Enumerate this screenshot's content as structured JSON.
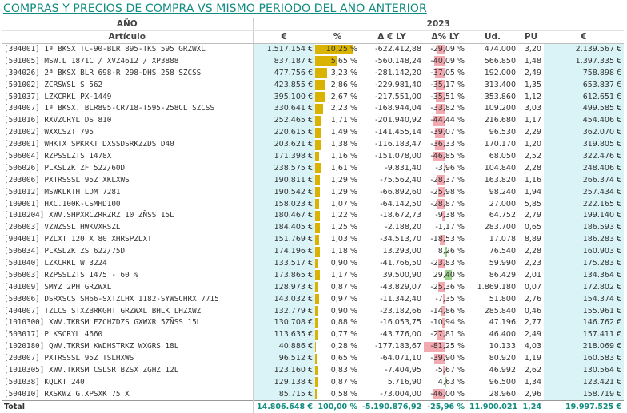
{
  "title": "COMPRAS Y PRECIOS DE COMPRA VS MISMO PERIODO DEL AÑO ANTERIOR",
  "header": {
    "year_label": "AÑO",
    "row_label": "Artículo",
    "year_2023": "2023",
    "columns": [
      "€",
      "%",
      "Δ € LY",
      "Δ% LY",
      "Ud.",
      "PU",
      "€"
    ]
  },
  "colors": {
    "share_bar": "#d9b300",
    "neg_bar": "#f2aab0",
    "pos_bar": "#9bd18b",
    "title": "#118c80",
    "cyan_fill": "#d9f3f7"
  },
  "rows": [
    {
      "articulo": "[304001] 1ª BKSX TC-90-BLR 895-TKS 595 GRZWXL",
      "eur": "1.517.154 €",
      "pct": "10,25 %",
      "pct_val": 10.25,
      "delta_eur": "-622.412,88",
      "delta_pct": "-29,09 %",
      "delta_pct_val": -29.09,
      "ud": "474.000",
      "pu": "3,20",
      "eur_ly": "2.139.567 €"
    },
    {
      "articulo": "[501005] MSW.L 1871C / XVZ4612 / XP3888",
      "eur": "837.187 €",
      "pct": "5,65 %",
      "pct_val": 5.65,
      "delta_eur": "-560.148,24",
      "delta_pct": "-40,09 %",
      "delta_pct_val": -40.09,
      "ud": "566.850",
      "pu": "1,48",
      "eur_ly": "1.397.335 €"
    },
    {
      "articulo": "[304026] 2ª BKSX BLR 698-R 298-DHS 258 SZCSS",
      "eur": "477.756 €",
      "pct": "3,23 %",
      "pct_val": 3.23,
      "delta_eur": "-281.142,20",
      "delta_pct": "-37,05 %",
      "delta_pct_val": -37.05,
      "ud": "192.000",
      "pu": "2,49",
      "eur_ly": "758.898 €"
    },
    {
      "articulo": "[501002] ZCRSWSL S 562",
      "eur": "423.855 €",
      "pct": "2,86 %",
      "pct_val": 2.86,
      "delta_eur": "-229.981,40",
      "delta_pct": "-35,17 %",
      "delta_pct_val": -35.17,
      "ud": "313.400",
      "pu": "1,35",
      "eur_ly": "653.837 €"
    },
    {
      "articulo": "[501037] LZKCRKL PX-1449",
      "eur": "395.100 €",
      "pct": "2,67 %",
      "pct_val": 2.67,
      "delta_eur": "-217.551,00",
      "delta_pct": "-35,51 %",
      "delta_pct_val": -35.51,
      "ud": "353.860",
      "pu": "1,12",
      "eur_ly": "612.651 €"
    },
    {
      "articulo": "[304007] 1ª BKSX. BLR895-CR718-T595-258CL SZCSS",
      "eur": "330.641 €",
      "pct": "2,23 %",
      "pct_val": 2.23,
      "delta_eur": "-168.944,04",
      "delta_pct": "-33,82 %",
      "delta_pct_val": -33.82,
      "ud": "109.200",
      "pu": "3,03",
      "eur_ly": "499.585 €"
    },
    {
      "articulo": "[501016] RXVZCRYL DS 810",
      "eur": "252.465 €",
      "pct": "1,71 %",
      "pct_val": 1.71,
      "delta_eur": "-201.940,92",
      "delta_pct": "-44,44 %",
      "delta_pct_val": -44.44,
      "ud": "216.680",
      "pu": "1,17",
      "eur_ly": "454.406 €"
    },
    {
      "articulo": "[201002] WXXCSZT 795",
      "eur": "220.615 €",
      "pct": "1,49 %",
      "pct_val": 1.49,
      "delta_eur": "-141.455,14",
      "delta_pct": "-39,07 %",
      "delta_pct_val": -39.07,
      "ud": "96.530",
      "pu": "2,29",
      "eur_ly": "362.070 €"
    },
    {
      "articulo": "[203001] WHKTX SPKRKT DXSSDSRKZZDS D40",
      "eur": "203.621 €",
      "pct": "1,38 %",
      "pct_val": 1.38,
      "delta_eur": "-116.183,47",
      "delta_pct": "-36,33 %",
      "delta_pct_val": -36.33,
      "ud": "170.170",
      "pu": "1,20",
      "eur_ly": "319.805 €"
    },
    {
      "articulo": "[506004] RZPSSLZTS 1478X",
      "eur": "171.398 €",
      "pct": "1,16 %",
      "pct_val": 1.16,
      "delta_eur": "-151.078,00",
      "delta_pct": "-46,85 %",
      "delta_pct_val": -46.85,
      "ud": "68.050",
      "pu": "2,52",
      "eur_ly": "322.476 €"
    },
    {
      "articulo": "[506026] PLKSLZK ZF 522/60D",
      "eur": "238.575 €",
      "pct": "1,61 %",
      "pct_val": 1.61,
      "delta_eur": "-9.831,40",
      "delta_pct": "-3,96 %",
      "delta_pct_val": -3.96,
      "ud": "104.840",
      "pu": "2,28",
      "eur_ly": "248.406 €"
    },
    {
      "articulo": "[203006] PXTRSSSL 95Z XKLXWS",
      "eur": "190.811 €",
      "pct": "1,29 %",
      "pct_val": 1.29,
      "delta_eur": "-75.562,40",
      "delta_pct": "-28,37 %",
      "delta_pct_val": -28.37,
      "ud": "163.820",
      "pu": "1,16",
      "eur_ly": "266.374 €"
    },
    {
      "articulo": "[501012] MSWKLKTH LDM 7281",
      "eur": "190.542 €",
      "pct": "1,29 %",
      "pct_val": 1.29,
      "delta_eur": "-66.892,60",
      "delta_pct": "-25,98 %",
      "delta_pct_val": -25.98,
      "ud": "98.240",
      "pu": "1,94",
      "eur_ly": "257.434 €"
    },
    {
      "articulo": "[109001] HXC.100K-CSMHD100",
      "eur": "158.023 €",
      "pct": "1,07 %",
      "pct_val": 1.07,
      "delta_eur": "-64.142,50",
      "delta_pct": "-28,87 %",
      "delta_pct_val": -28.87,
      "ud": "27.000",
      "pu": "5,85",
      "eur_ly": "222.165 €"
    },
    {
      "articulo": "[1010204] XWV.SHPXRCZRRZRZ 10 ZÑSS 15L",
      "eur": "180.467 €",
      "pct": "1,22 %",
      "pct_val": 1.22,
      "delta_eur": "-18.672,73",
      "delta_pct": "-9,38 %",
      "delta_pct_val": -9.38,
      "ud": "64.752",
      "pu": "2,79",
      "eur_ly": "199.140 €"
    },
    {
      "articulo": "[206003] VZWZSSL HWKVXRSZL",
      "eur": "184.405 €",
      "pct": "1,25 %",
      "pct_val": 1.25,
      "delta_eur": "-2.188,20",
      "delta_pct": "-1,17 %",
      "delta_pct_val": -1.17,
      "ud": "283.700",
      "pu": "0,65",
      "eur_ly": "186.593 €"
    },
    {
      "articulo": "[904001] PZLXT 120 X 80 XHRSPZLXT",
      "eur": "151.769 €",
      "pct": "1,03 %",
      "pct_val": 1.03,
      "delta_eur": "-34.513,70",
      "delta_pct": "-18,53 %",
      "delta_pct_val": -18.53,
      "ud": "17.078",
      "pu": "8,89",
      "eur_ly": "186.283 €"
    },
    {
      "articulo": "[506034] PLKSLZK ZS 622/75D",
      "eur": "174.196 €",
      "pct": "1,18 %",
      "pct_val": 1.18,
      "delta_eur": "13.293,00",
      "delta_pct": "8,26 %",
      "delta_pct_val": 8.26,
      "ud": "76.540",
      "pu": "2,28",
      "eur_ly": "160.903 €"
    },
    {
      "articulo": "[501040] LZKCRKL W 3224",
      "eur": "133.517 €",
      "pct": "0,90 %",
      "pct_val": 0.9,
      "delta_eur": "-41.766,50",
      "delta_pct": "-23,83 %",
      "delta_pct_val": -23.83,
      "ud": "59.990",
      "pu": "2,23",
      "eur_ly": "175.283 €"
    },
    {
      "articulo": "[506003] RZPSSLZTS 1475 - 60 %",
      "eur": "173.865 €",
      "pct": "1,17 %",
      "pct_val": 1.17,
      "delta_eur": "39.500,90",
      "delta_pct": "29,40 %",
      "delta_pct_val": 29.4,
      "ud": "86.429",
      "pu": "2,01",
      "eur_ly": "134.364 €"
    },
    {
      "articulo": "[401009] SMYZ 2PH GRZWXL",
      "eur": "128.973 €",
      "pct": "0,87 %",
      "pct_val": 0.87,
      "delta_eur": "-43.829,07",
      "delta_pct": "-25,36 %",
      "delta_pct_val": -25.36,
      "ud": "1.869.180",
      "pu": "0,07",
      "eur_ly": "172.802 €"
    },
    {
      "articulo": "[503006] DSRXSCS SH66-SXTZLHX 1182-SYWSCHRX 7715",
      "eur": "143.032 €",
      "pct": "0,97 %",
      "pct_val": 0.97,
      "delta_eur": "-11.342,40",
      "delta_pct": "-7,35 %",
      "delta_pct_val": -7.35,
      "ud": "51.800",
      "pu": "2,76",
      "eur_ly": "154.374 €"
    },
    {
      "articulo": "[404007] TZLCS STXZBRKGHT GRZWXL BHLK LHZXWZ",
      "eur": "132.779 €",
      "pct": "0,90 %",
      "pct_val": 0.9,
      "delta_eur": "-23.182,66",
      "delta_pct": "-14,86 %",
      "delta_pct_val": -14.86,
      "ud": "285.840",
      "pu": "0,46",
      "eur_ly": "155.961 €"
    },
    {
      "articulo": "[1010300] XWV.TKRSM FZCHZDZS GXWXR 5ZÑSS 15L",
      "eur": "130.708 €",
      "pct": "0,88 %",
      "pct_val": 0.88,
      "delta_eur": "-16.053,75",
      "delta_pct": "-10,94 %",
      "delta_pct_val": -10.94,
      "ud": "47.196",
      "pu": "2,77",
      "eur_ly": "146.762 €"
    },
    {
      "articulo": "[503017] PLKSCRYL 4660",
      "eur": "113.635 €",
      "pct": "0,77 %",
      "pct_val": 0.77,
      "delta_eur": "-43.776,00",
      "delta_pct": "-27,81 %",
      "delta_pct_val": -27.81,
      "ud": "46.400",
      "pu": "2,49",
      "eur_ly": "157.411 €"
    },
    {
      "articulo": "[1020180] QWV.TKRSM KWDHSTRKZ WXGRS 18L",
      "eur": "40.886 €",
      "pct": "0,28 %",
      "pct_val": 0.28,
      "delta_eur": "-177.183,67",
      "delta_pct": "-81,25 %",
      "delta_pct_val": -81.25,
      "ud": "10.133",
      "pu": "4,03",
      "eur_ly": "218.069 €"
    },
    {
      "articulo": "[203007] PXTRSSSL 95Z TSLHXWS",
      "eur": "96.512 €",
      "pct": "0,65 %",
      "pct_val": 0.65,
      "delta_eur": "-64.071,10",
      "delta_pct": "-39,90 %",
      "delta_pct_val": -39.9,
      "ud": "80.920",
      "pu": "1,19",
      "eur_ly": "160.583 €"
    },
    {
      "articulo": "[1010305] XWV.TKRSM CSLSR BZSX ZGHZ  12L",
      "eur": "123.160 €",
      "pct": "0,83 %",
      "pct_val": 0.83,
      "delta_eur": "-7.404,95",
      "delta_pct": "-5,67 %",
      "delta_pct_val": -5.67,
      "ud": "46.992",
      "pu": "2,62",
      "eur_ly": "130.564 €"
    },
    {
      "articulo": "[501038] KQLKT 240",
      "eur": "129.138 €",
      "pct": "0,87 %",
      "pct_val": 0.87,
      "delta_eur": "5.716,90",
      "delta_pct": "4,63 %",
      "delta_pct_val": 4.63,
      "ud": "96.500",
      "pu": "1,34",
      "eur_ly": "123.421 €"
    },
    {
      "articulo": "[504010] RXSKWZ G.XPSXK 75 X",
      "eur": "85.715 €",
      "pct": "0,58 %",
      "pct_val": 0.58,
      "delta_eur": "-73.004,00",
      "delta_pct": "-46,00 %",
      "delta_pct_val": -46.0,
      "ud": "28.960",
      "pu": "2,96",
      "eur_ly": "158.719 €"
    }
  ],
  "totals": {
    "label": "Total",
    "eur": "14.806.648 €",
    "pct": "100,00 %",
    "delta_eur": "-5.190.876,92",
    "delta_pct": "-25,96 %",
    "ud": "11.900.021",
    "pu": "1,24",
    "eur_ly": "19.997.525 €"
  }
}
